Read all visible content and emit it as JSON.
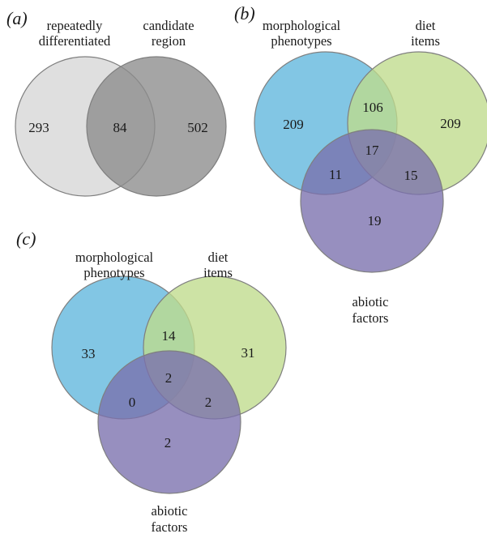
{
  "panels": [
    {
      "label": "(a)",
      "sets": [
        {
          "key": "rd",
          "label_lines": [
            "repeatedly",
            "differentiated"
          ],
          "color": "#d6d6d6"
        },
        {
          "key": "cr",
          "label_lines": [
            "candidate",
            "region"
          ],
          "color": "#8c8c8c"
        }
      ],
      "regions": [
        {
          "sets": [
            "rd"
          ],
          "count": 293
        },
        {
          "sets": [
            "rd",
            "cr"
          ],
          "count": 84
        },
        {
          "sets": [
            "cr"
          ],
          "count": 502
        }
      ]
    },
    {
      "label": "(b)",
      "sets": [
        {
          "key": "mp",
          "label_lines": [
            "morphological",
            "phenotypes"
          ],
          "color": "#5fb6dc"
        },
        {
          "key": "di",
          "label_lines": [
            "diet",
            "items"
          ],
          "color": "#bfdb8c"
        },
        {
          "key": "af",
          "label_lines": [
            "abiotic",
            "factors"
          ],
          "color": "#7a70ad"
        }
      ],
      "regions": [
        {
          "sets": [
            "mp"
          ],
          "count": 209
        },
        {
          "sets": [
            "mp",
            "di"
          ],
          "count": 106
        },
        {
          "sets": [
            "di"
          ],
          "count": 209
        },
        {
          "sets": [
            "mp",
            "di",
            "af"
          ],
          "count": 17
        },
        {
          "sets": [
            "mp",
            "af"
          ],
          "count": 11
        },
        {
          "sets": [
            "di",
            "af"
          ],
          "count": 15
        },
        {
          "sets": [
            "af"
          ],
          "count": 19
        }
      ]
    },
    {
      "label": "(c)",
      "sets": [
        {
          "key": "mp",
          "label_lines": [
            "morphological",
            "phenotypes"
          ],
          "color": "#5fb6dc"
        },
        {
          "key": "di",
          "label_lines": [
            "diet",
            "items"
          ],
          "color": "#bfdb8c"
        },
        {
          "key": "af",
          "label_lines": [
            "abiotic",
            "factors"
          ],
          "color": "#7a70ad"
        }
      ],
      "regions": [
        {
          "sets": [
            "mp"
          ],
          "count": 33
        },
        {
          "sets": [
            "mp",
            "di"
          ],
          "count": 14
        },
        {
          "sets": [
            "di"
          ],
          "count": 31
        },
        {
          "sets": [
            "mp",
            "di",
            "af"
          ],
          "count": 2
        },
        {
          "sets": [
            "mp",
            "af"
          ],
          "count": 0
        },
        {
          "sets": [
            "di",
            "af"
          ],
          "count": 2
        },
        {
          "sets": [
            "af"
          ],
          "count": 2
        }
      ]
    }
  ]
}
